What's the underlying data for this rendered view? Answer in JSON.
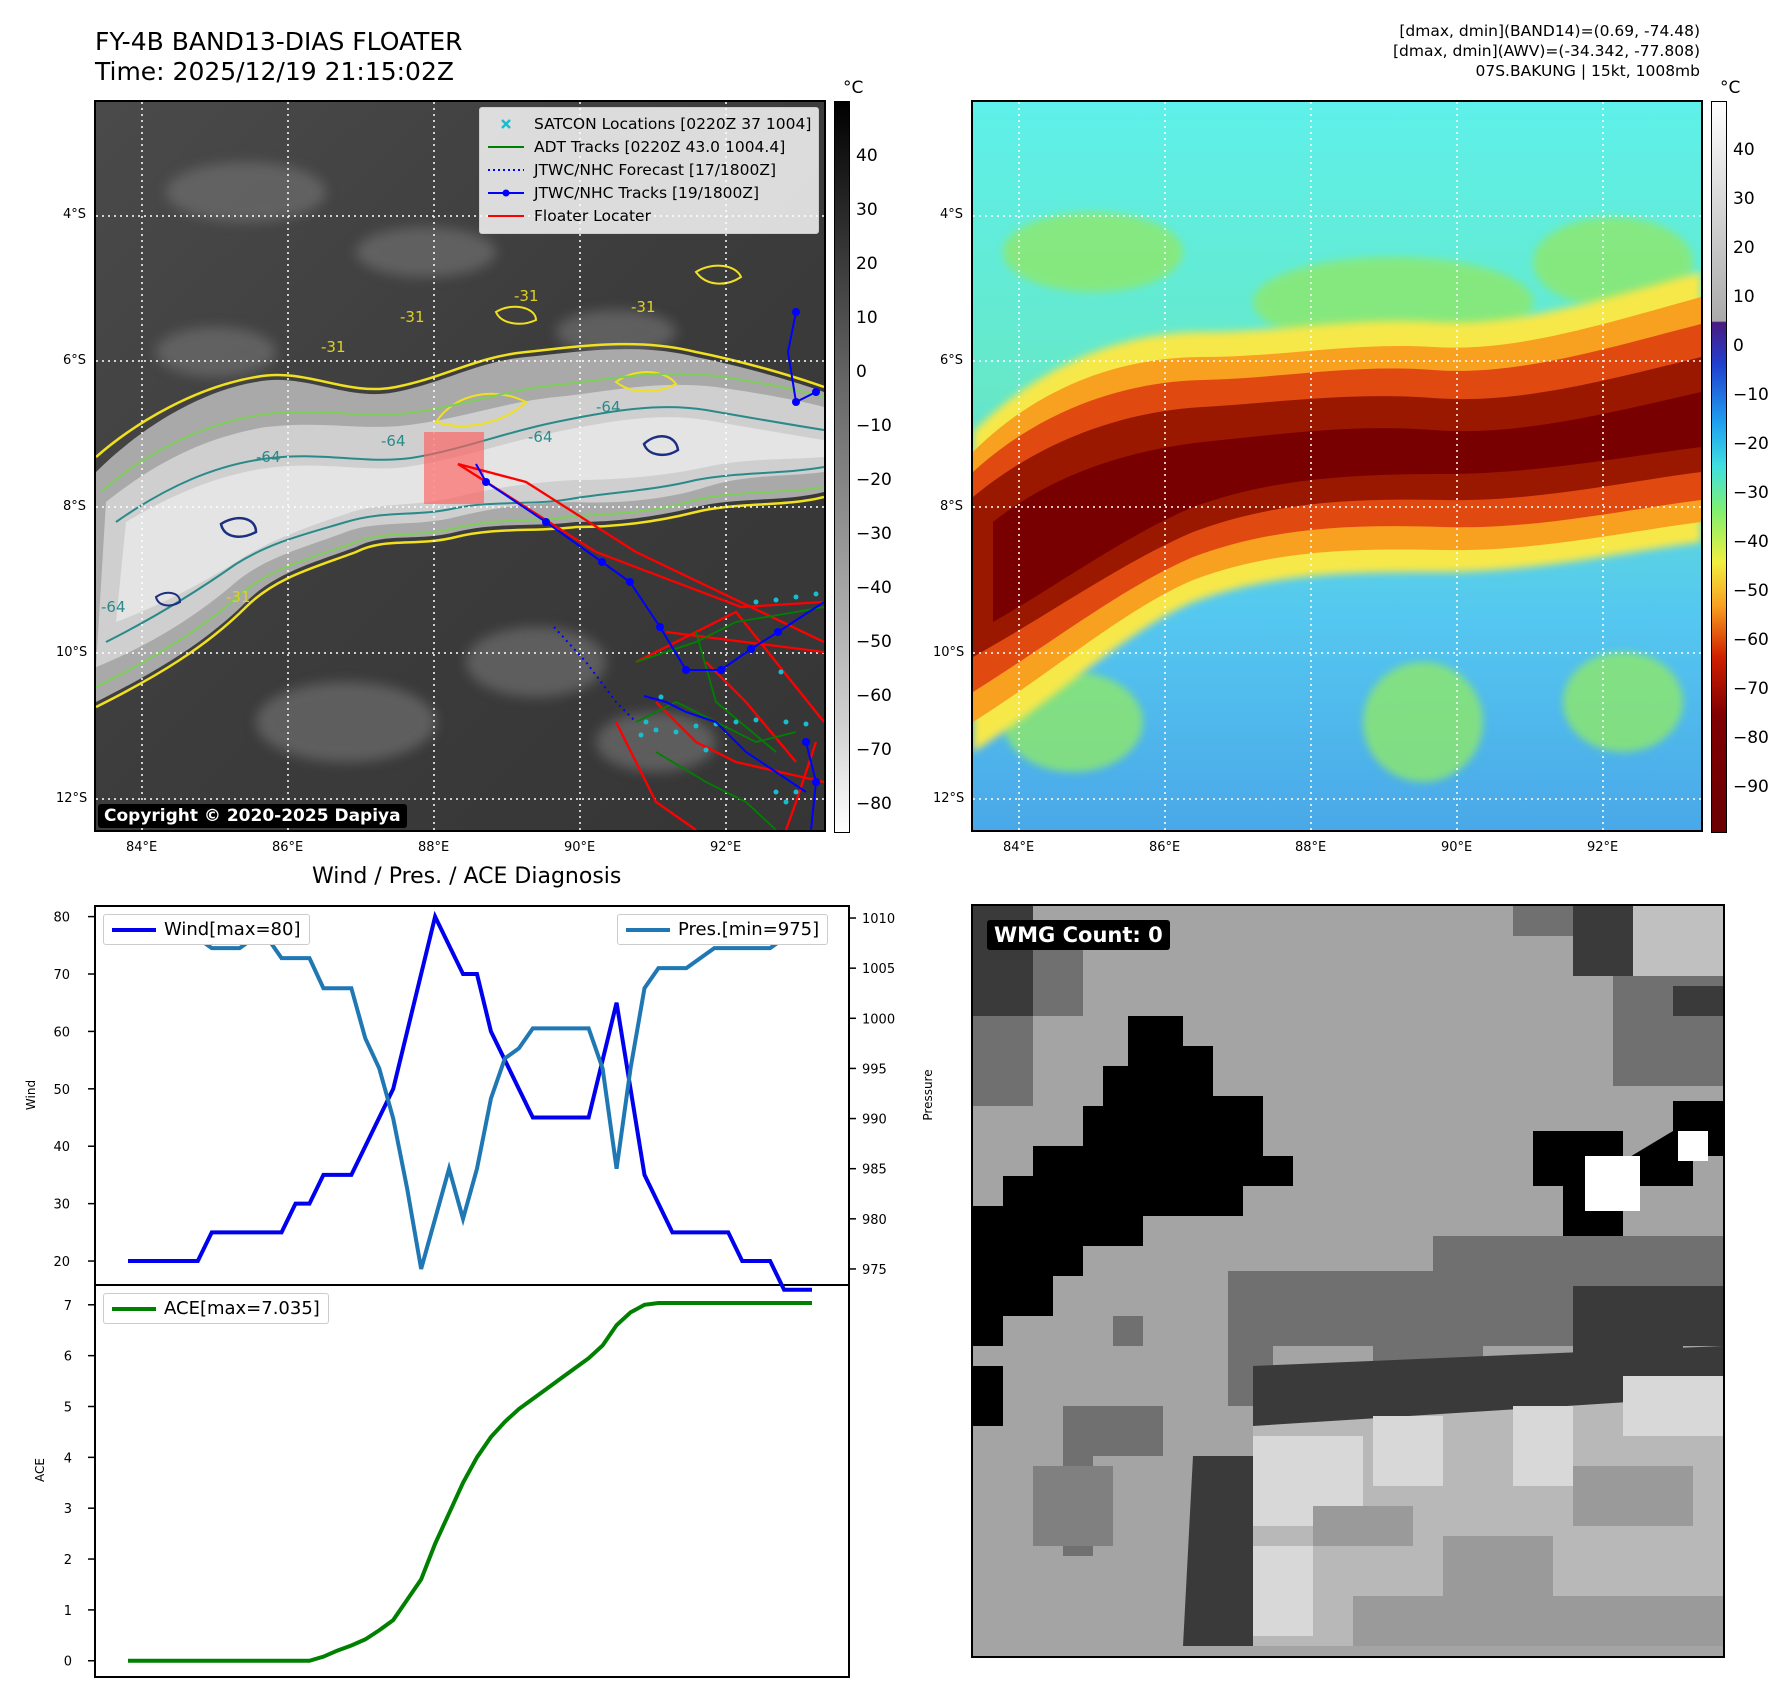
{
  "header": {
    "title_line1": "FY-4B BAND13-DIAS FLOATER",
    "title_line2": "Time: 2025/12/19 21:15:02Z",
    "info_line1": "[dmax, dmin](BAND14)=(0.69, -74.48)",
    "info_line2": "[dmax, dmin](AWV)=(-34.342, -77.808)",
    "info_line3": "07S.BAKUNG | 15kt, 1008mb"
  },
  "maps": {
    "lat_labels": [
      "4°S",
      "6°S",
      "8°S",
      "10°S",
      "12°S"
    ],
    "lon_labels": [
      "84°E",
      "86°E",
      "88°E",
      "90°E",
      "92°E"
    ],
    "unit": "°C",
    "gray_colorbar_ticks": [
      "40",
      "30",
      "20",
      "10",
      "0",
      "−10",
      "−20",
      "−30",
      "−40",
      "−50",
      "−60",
      "−70",
      "−80"
    ],
    "color_colorbar_ticks": [
      "40",
      "30",
      "20",
      "10",
      "0",
      "−10",
      "−20",
      "−30",
      "−40",
      "−50",
      "−60",
      "−70",
      "−80",
      "−90"
    ],
    "contour_labels": [
      "-31",
      "-31",
      "-31",
      "-31",
      "-64",
      "-64",
      "-64",
      "-64",
      "-64",
      "-31"
    ],
    "legend": [
      {
        "label": "SATCON Locations [0220Z 37 1004]",
        "color": "#17becf",
        "style": "x"
      },
      {
        "label": "ADT Tracks [0220Z 43.0 1004.4]",
        "color": "#008000",
        "style": "solid"
      },
      {
        "label": "JTWC/NHC Forecast [17/1800Z]",
        "color": "#0000ff",
        "style": "dotted"
      },
      {
        "label": "JTWC/NHC Tracks [19/1800Z]",
        "color": "#0000ff",
        "style": "dot-line"
      },
      {
        "label": "Floater Locater",
        "color": "#ff0000",
        "style": "solid"
      }
    ],
    "copyright": "Copyright © 2020-2025 Dapiya",
    "wmg_label": "WMG Count: 0"
  },
  "diagnosis": {
    "title": "Wind / Pres. / ACE Diagnosis",
    "wind_axis_label": "Wind",
    "pressure_axis_label": "Pressure",
    "ace_axis_label": "ACE",
    "wind_legend": "Wind[max=80]",
    "pres_legend": "Pres.[min=975]",
    "ace_legend": "ACE[max=7.035]",
    "colors": {
      "wind": "#0000ee",
      "pressure": "#1f77b4",
      "ace": "#008000"
    }
  },
  "chart_data": [
    {
      "type": "line",
      "title": "Wind / Pres. / ACE Diagnosis",
      "ylabel": "Wind",
      "y2label": "Pressure",
      "x": [
        0,
        1,
        2,
        3,
        4,
        5,
        6,
        7,
        8,
        9,
        10,
        11,
        12,
        13,
        14,
        15,
        16,
        17,
        18,
        19,
        20,
        21,
        22,
        23,
        24,
        25,
        26,
        27,
        28,
        29,
        30,
        31,
        32,
        33,
        34,
        35,
        36,
        37,
        38,
        39,
        40,
        41,
        42,
        43,
        44,
        45,
        46,
        47,
        48,
        49
      ],
      "ylim": [
        16,
        81.5
      ],
      "y2lim": [
        973.5,
        1011
      ],
      "series": [
        {
          "name": "Wind[max=80]",
          "axis": "left",
          "color": "#0000ee",
          "values": [
            20,
            20,
            20,
            20,
            20,
            20,
            25,
            25,
            25,
            25,
            25,
            25,
            30,
            30,
            35,
            35,
            35,
            40,
            45,
            50,
            60,
            70,
            80,
            75,
            70,
            70,
            60,
            55,
            50,
            45,
            45,
            45,
            45,
            45,
            55,
            65,
            50,
            35,
            30,
            25,
            25,
            25,
            25,
            25,
            20,
            20,
            20,
            15,
            15,
            15
          ]
        },
        {
          "name": "Pres.[min=975]",
          "axis": "right",
          "color": "#1f77b4",
          "values": [
            1008,
            1008,
            1008,
            1008,
            1008,
            1008,
            1007,
            1007,
            1007,
            1008,
            1008,
            1006,
            1006,
            1006,
            1003,
            1003,
            1003,
            998,
            995,
            990,
            983,
            975,
            980,
            985,
            980,
            985,
            992,
            996,
            997,
            999,
            999,
            999,
            999,
            999,
            995,
            985,
            995,
            1003,
            1005,
            1005,
            1005,
            1006,
            1007,
            1007,
            1007,
            1007,
            1007,
            1008,
            1008,
            1008
          ]
        }
      ]
    },
    {
      "type": "line",
      "ylabel": "ACE",
      "x": [
        0,
        1,
        2,
        3,
        4,
        5,
        6,
        7,
        8,
        9,
        10,
        11,
        12,
        13,
        14,
        15,
        16,
        17,
        18,
        19,
        20,
        21,
        22,
        23,
        24,
        25,
        26,
        27,
        28,
        29,
        30,
        31,
        32,
        33,
        34,
        35,
        36,
        37,
        38,
        39,
        40,
        41,
        42,
        43,
        44,
        45,
        46,
        47,
        48,
        49
      ],
      "ylim": [
        -0.3,
        7.35
      ],
      "series": [
        {
          "name": "ACE[max=7.035]",
          "color": "#008000",
          "values": [
            0,
            0,
            0,
            0,
            0,
            0,
            0,
            0,
            0,
            0,
            0,
            0,
            0,
            0,
            0.08,
            0.2,
            0.3,
            0.42,
            0.6,
            0.8,
            1.2,
            1.6,
            2.3,
            2.9,
            3.5,
            4.0,
            4.4,
            4.7,
            4.95,
            5.15,
            5.35,
            5.55,
            5.75,
            5.95,
            6.2,
            6.6,
            6.85,
            7.0,
            7.035,
            7.035,
            7.035,
            7.035,
            7.035,
            7.035,
            7.035,
            7.035,
            7.035,
            7.035,
            7.035,
            7.035
          ]
        }
      ]
    }
  ]
}
